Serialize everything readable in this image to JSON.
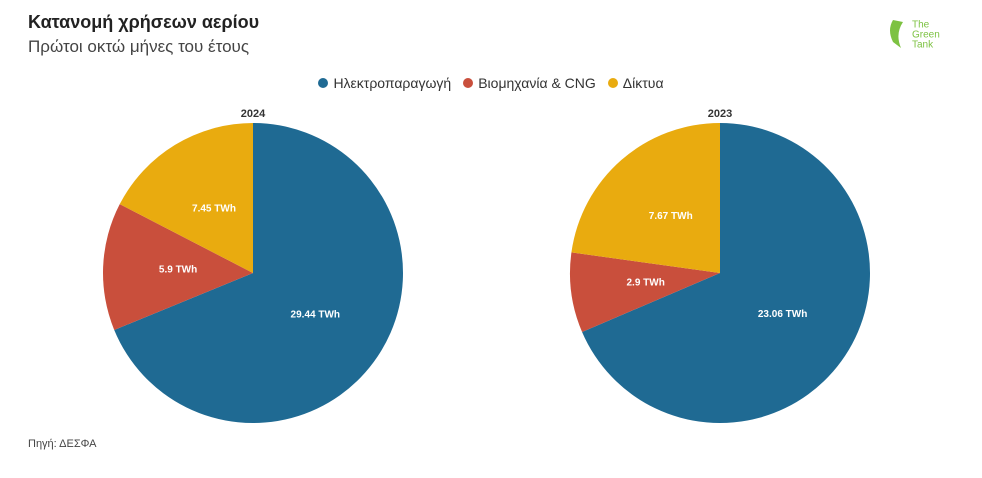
{
  "header": {
    "title": "Κατανομή χρήσεων αερίου",
    "subtitle": "Πρώτοι οκτώ μήνες του έτους",
    "logo": [
      "The",
      "Green",
      "Tank"
    ]
  },
  "source": "Πηγή: ΔΕΣΦΑ",
  "chart_data": [
    {
      "type": "pie",
      "title": "2024",
      "categories": [
        "Ηλεκτροπαραγωγή",
        "Βιομηχανία & CNG",
        "Δίκτυα"
      ],
      "values": [
        29.44,
        5.9,
        7.45
      ],
      "value_labels": [
        "29.44 TWh",
        "5.9 TWh",
        "7.45 TWh"
      ],
      "colors": [
        "#1f6a93",
        "#c94f3c",
        "#e9ab0f"
      ]
    },
    {
      "type": "pie",
      "title": "2023",
      "categories": [
        "Ηλεκτροπαραγωγή",
        "Βιομηχανία & CNG",
        "Δίκτυα"
      ],
      "values": [
        23.06,
        2.9,
        7.67
      ],
      "value_labels": [
        "23.06 TWh",
        "2.9 TWh",
        "7.67 TWh"
      ],
      "colors": [
        "#1f6a93",
        "#c94f3c",
        "#e9ab0f"
      ]
    }
  ]
}
